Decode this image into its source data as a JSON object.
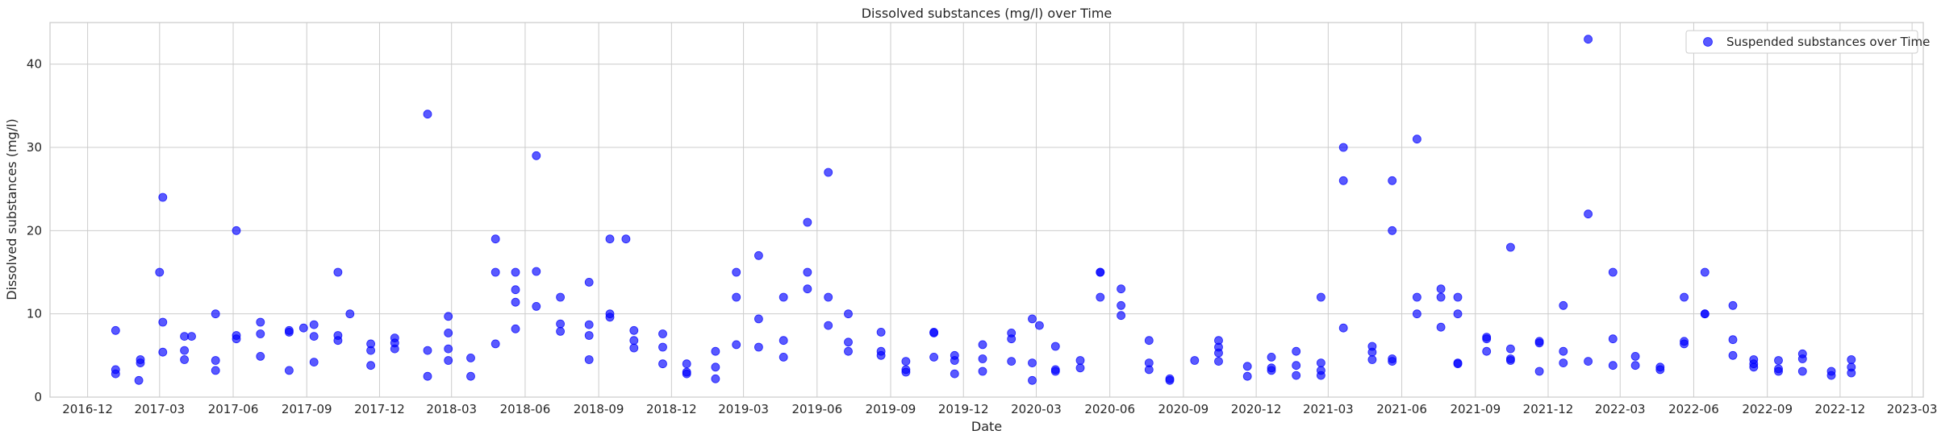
{
  "chart_data": {
    "type": "scatter",
    "title": "Dissolved substances (mg/l) over Time",
    "xlabel": "Date",
    "ylabel": "Dissolved substances (mg/l)",
    "xlim": [
      "2016-10-15",
      "2023-03-15"
    ],
    "ylim": [
      0,
      45
    ],
    "x_ticks": [
      "2016-12",
      "2017-03",
      "2017-06",
      "2017-09",
      "2017-12",
      "2018-03",
      "2018-06",
      "2018-09",
      "2018-12",
      "2019-03",
      "2019-06",
      "2019-09",
      "2019-12",
      "2020-03",
      "2020-06",
      "2020-09",
      "2020-12",
      "2021-03",
      "2021-06",
      "2021-09",
      "2021-12",
      "2022-03",
      "2022-06",
      "2022-09",
      "2022-12",
      "2023-03"
    ],
    "y_ticks": [
      0,
      10,
      20,
      30,
      40
    ],
    "grid": true,
    "legend_position": "top-right",
    "colors": {
      "marker": "#0000ff",
      "marker_alpha": 0.65,
      "grid": "#cccccc"
    },
    "series": [
      {
        "name": "Suspended substances over Time",
        "points": [
          {
            "x": "2017-01-05",
            "y": 8.0
          },
          {
            "x": "2017-01-05",
            "y": 3.3
          },
          {
            "x": "2017-01-05",
            "y": 2.8
          },
          {
            "x": "2017-02-05",
            "y": 4.5
          },
          {
            "x": "2017-02-05",
            "y": 4.1
          },
          {
            "x": "2017-02-03",
            "y": 2.0
          },
          {
            "x": "2017-03-01",
            "y": 15.0
          },
          {
            "x": "2017-03-05",
            "y": 24.0
          },
          {
            "x": "2017-03-05",
            "y": 9.0
          },
          {
            "x": "2017-03-05",
            "y": 5.4
          },
          {
            "x": "2017-04-01",
            "y": 7.3
          },
          {
            "x": "2017-04-01",
            "y": 5.6
          },
          {
            "x": "2017-04-01",
            "y": 4.5
          },
          {
            "x": "2017-04-10",
            "y": 7.3
          },
          {
            "x": "2017-05-10",
            "y": 10.0
          },
          {
            "x": "2017-05-10",
            "y": 4.4
          },
          {
            "x": "2017-05-10",
            "y": 3.2
          },
          {
            "x": "2017-06-05",
            "y": 20.0
          },
          {
            "x": "2017-06-05",
            "y": 7.4
          },
          {
            "x": "2017-06-05",
            "y": 7.0
          },
          {
            "x": "2017-07-05",
            "y": 9.0
          },
          {
            "x": "2017-07-05",
            "y": 7.6
          },
          {
            "x": "2017-07-05",
            "y": 4.9
          },
          {
            "x": "2017-08-10",
            "y": 8.0
          },
          {
            "x": "2017-08-10",
            "y": 7.8
          },
          {
            "x": "2017-08-10",
            "y": 3.2
          },
          {
            "x": "2017-08-28",
            "y": 8.3
          },
          {
            "x": "2017-09-10",
            "y": 8.7
          },
          {
            "x": "2017-09-10",
            "y": 7.3
          },
          {
            "x": "2017-09-10",
            "y": 4.2
          },
          {
            "x": "2017-10-10",
            "y": 15.0
          },
          {
            "x": "2017-10-10",
            "y": 7.4
          },
          {
            "x": "2017-10-10",
            "y": 6.8
          },
          {
            "x": "2017-10-25",
            "y": 10.0
          },
          {
            "x": "2017-11-20",
            "y": 6.4
          },
          {
            "x": "2017-11-20",
            "y": 5.6
          },
          {
            "x": "2017-11-20",
            "y": 3.8
          },
          {
            "x": "2017-12-20",
            "y": 7.1
          },
          {
            "x": "2017-12-20",
            "y": 6.5
          },
          {
            "x": "2017-12-20",
            "y": 5.8
          },
          {
            "x": "2018-01-30",
            "y": 34.0
          },
          {
            "x": "2018-01-30",
            "y": 5.6
          },
          {
            "x": "2018-01-30",
            "y": 2.5
          },
          {
            "x": "2018-02-25",
            "y": 9.7
          },
          {
            "x": "2018-02-25",
            "y": 7.7
          },
          {
            "x": "2018-02-25",
            "y": 5.8
          },
          {
            "x": "2018-02-25",
            "y": 4.4
          },
          {
            "x": "2018-03-25",
            "y": 4.7
          },
          {
            "x": "2018-03-25",
            "y": 2.5
          },
          {
            "x": "2018-04-25",
            "y": 19.0
          },
          {
            "x": "2018-04-25",
            "y": 15.0
          },
          {
            "x": "2018-04-25",
            "y": 6.4
          },
          {
            "x": "2018-05-20",
            "y": 15.0
          },
          {
            "x": "2018-05-20",
            "y": 12.9
          },
          {
            "x": "2018-05-20",
            "y": 11.4
          },
          {
            "x": "2018-05-20",
            "y": 8.2
          },
          {
            "x": "2018-06-15",
            "y": 29.0
          },
          {
            "x": "2018-06-15",
            "y": 15.1
          },
          {
            "x": "2018-06-15",
            "y": 10.9
          },
          {
            "x": "2018-07-15",
            "y": 12.0
          },
          {
            "x": "2018-07-15",
            "y": 8.8
          },
          {
            "x": "2018-07-15",
            "y": 7.9
          },
          {
            "x": "2018-08-20",
            "y": 13.8
          },
          {
            "x": "2018-08-20",
            "y": 8.7
          },
          {
            "x": "2018-08-20",
            "y": 7.4
          },
          {
            "x": "2018-08-20",
            "y": 4.5
          },
          {
            "x": "2018-09-15",
            "y": 19.0
          },
          {
            "x": "2018-09-15",
            "y": 10.0
          },
          {
            "x": "2018-09-15",
            "y": 9.6
          },
          {
            "x": "2018-10-05",
            "y": 19.0
          },
          {
            "x": "2018-10-15",
            "y": 8.0
          },
          {
            "x": "2018-10-15",
            "y": 6.8
          },
          {
            "x": "2018-10-15",
            "y": 5.9
          },
          {
            "x": "2018-11-20",
            "y": 7.6
          },
          {
            "x": "2018-11-20",
            "y": 6.0
          },
          {
            "x": "2018-11-20",
            "y": 4.0
          },
          {
            "x": "2018-12-20",
            "y": 4.0
          },
          {
            "x": "2018-12-20",
            "y": 3.0
          },
          {
            "x": "2018-12-20",
            "y": 2.8
          },
          {
            "x": "2019-01-25",
            "y": 5.5
          },
          {
            "x": "2019-01-25",
            "y": 3.6
          },
          {
            "x": "2019-01-25",
            "y": 2.2
          },
          {
            "x": "2019-02-20",
            "y": 15.0
          },
          {
            "x": "2019-02-20",
            "y": 12.0
          },
          {
            "x": "2019-02-20",
            "y": 6.3
          },
          {
            "x": "2019-03-20",
            "y": 17.0
          },
          {
            "x": "2019-03-20",
            "y": 9.4
          },
          {
            "x": "2019-03-20",
            "y": 6.0
          },
          {
            "x": "2019-04-20",
            "y": 12.0
          },
          {
            "x": "2019-04-20",
            "y": 6.8
          },
          {
            "x": "2019-04-20",
            "y": 4.8
          },
          {
            "x": "2019-05-20",
            "y": 21.0
          },
          {
            "x": "2019-05-20",
            "y": 15.0
          },
          {
            "x": "2019-05-20",
            "y": 13.0
          },
          {
            "x": "2019-06-15",
            "y": 27.0
          },
          {
            "x": "2019-06-15",
            "y": 12.0
          },
          {
            "x": "2019-06-15",
            "y": 8.6
          },
          {
            "x": "2019-07-10",
            "y": 10.0
          },
          {
            "x": "2019-07-10",
            "y": 6.6
          },
          {
            "x": "2019-07-10",
            "y": 5.5
          },
          {
            "x": "2019-08-20",
            "y": 7.8
          },
          {
            "x": "2019-08-20",
            "y": 5.5
          },
          {
            "x": "2019-08-20",
            "y": 5.0
          },
          {
            "x": "2019-09-20",
            "y": 4.3
          },
          {
            "x": "2019-09-20",
            "y": 3.3
          },
          {
            "x": "2019-09-20",
            "y": 3.0
          },
          {
            "x": "2019-10-25",
            "y": 7.8
          },
          {
            "x": "2019-10-25",
            "y": 7.7
          },
          {
            "x": "2019-10-25",
            "y": 4.8
          },
          {
            "x": "2019-11-20",
            "y": 5.0
          },
          {
            "x": "2019-11-20",
            "y": 4.4
          },
          {
            "x": "2019-11-20",
            "y": 2.8
          },
          {
            "x": "2019-12-25",
            "y": 6.3
          },
          {
            "x": "2019-12-25",
            "y": 4.6
          },
          {
            "x": "2019-12-25",
            "y": 3.1
          },
          {
            "x": "2020-01-30",
            "y": 7.7
          },
          {
            "x": "2020-01-30",
            "y": 7.0
          },
          {
            "x": "2020-01-30",
            "y": 4.3
          },
          {
            "x": "2020-02-25",
            "y": 9.4
          },
          {
            "x": "2020-02-25",
            "y": 4.1
          },
          {
            "x": "2020-02-25",
            "y": 2.0
          },
          {
            "x": "2020-03-05",
            "y": 8.6
          },
          {
            "x": "2020-03-25",
            "y": 6.1
          },
          {
            "x": "2020-03-25",
            "y": 3.3
          },
          {
            "x": "2020-03-25",
            "y": 3.1
          },
          {
            "x": "2020-04-25",
            "y": 4.4
          },
          {
            "x": "2020-04-25",
            "y": 3.5
          },
          {
            "x": "2020-05-20",
            "y": 15.0
          },
          {
            "x": "2020-05-20",
            "y": 15.0
          },
          {
            "x": "2020-05-20",
            "y": 12.0
          },
          {
            "x": "2020-06-15",
            "y": 13.0
          },
          {
            "x": "2020-06-15",
            "y": 11.0
          },
          {
            "x": "2020-06-15",
            "y": 9.8
          },
          {
            "x": "2020-07-20",
            "y": 6.8
          },
          {
            "x": "2020-07-20",
            "y": 4.1
          },
          {
            "x": "2020-07-20",
            "y": 3.3
          },
          {
            "x": "2020-08-15",
            "y": 2.2
          },
          {
            "x": "2020-08-15",
            "y": 2.0
          },
          {
            "x": "2020-09-15",
            "y": 4.4
          },
          {
            "x": "2020-10-15",
            "y": 6.8
          },
          {
            "x": "2020-10-15",
            "y": 6.0
          },
          {
            "x": "2020-10-15",
            "y": 5.3
          },
          {
            "x": "2020-10-15",
            "y": 4.3
          },
          {
            "x": "2020-11-20",
            "y": 3.7
          },
          {
            "x": "2020-11-20",
            "y": 2.5
          },
          {
            "x": "2020-12-20",
            "y": 4.8
          },
          {
            "x": "2020-12-20",
            "y": 3.5
          },
          {
            "x": "2020-12-20",
            "y": 3.2
          },
          {
            "x": "2021-01-20",
            "y": 5.5
          },
          {
            "x": "2021-01-20",
            "y": 3.8
          },
          {
            "x": "2021-01-20",
            "y": 2.6
          },
          {
            "x": "2021-02-20",
            "y": 12.0
          },
          {
            "x": "2021-02-20",
            "y": 4.1
          },
          {
            "x": "2021-02-20",
            "y": 3.2
          },
          {
            "x": "2021-02-20",
            "y": 2.6
          },
          {
            "x": "2021-03-20",
            "y": 30.0
          },
          {
            "x": "2021-03-20",
            "y": 26.0
          },
          {
            "x": "2021-03-20",
            "y": 8.3
          },
          {
            "x": "2021-04-25",
            "y": 6.1
          },
          {
            "x": "2021-04-25",
            "y": 5.4
          },
          {
            "x": "2021-04-25",
            "y": 4.5
          },
          {
            "x": "2021-05-20",
            "y": 26.0
          },
          {
            "x": "2021-05-20",
            "y": 20.0
          },
          {
            "x": "2021-05-20",
            "y": 4.6
          },
          {
            "x": "2021-05-20",
            "y": 4.3
          },
          {
            "x": "2021-06-20",
            "y": 31.0
          },
          {
            "x": "2021-06-20",
            "y": 12.0
          },
          {
            "x": "2021-06-20",
            "y": 10.0
          },
          {
            "x": "2021-07-20",
            "y": 13.0
          },
          {
            "x": "2021-07-20",
            "y": 12.0
          },
          {
            "x": "2021-07-20",
            "y": 8.4
          },
          {
            "x": "2021-08-10",
            "y": 12.0
          },
          {
            "x": "2021-08-10",
            "y": 10.0
          },
          {
            "x": "2021-08-10",
            "y": 4.1
          },
          {
            "x": "2021-08-10",
            "y": 4.0
          },
          {
            "x": "2021-09-15",
            "y": 7.2
          },
          {
            "x": "2021-09-15",
            "y": 7.0
          },
          {
            "x": "2021-09-15",
            "y": 5.5
          },
          {
            "x": "2021-10-15",
            "y": 18.0
          },
          {
            "x": "2021-10-15",
            "y": 5.8
          },
          {
            "x": "2021-10-15",
            "y": 4.6
          },
          {
            "x": "2021-10-15",
            "y": 4.4
          },
          {
            "x": "2021-11-20",
            "y": 6.7
          },
          {
            "x": "2021-11-20",
            "y": 6.5
          },
          {
            "x": "2021-11-20",
            "y": 3.1
          },
          {
            "x": "2021-12-20",
            "y": 11.0
          },
          {
            "x": "2021-12-20",
            "y": 5.5
          },
          {
            "x": "2021-12-20",
            "y": 4.1
          },
          {
            "x": "2022-01-20",
            "y": 43.0
          },
          {
            "x": "2022-01-20",
            "y": 22.0
          },
          {
            "x": "2022-01-20",
            "y": 4.3
          },
          {
            "x": "2022-02-20",
            "y": 15.0
          },
          {
            "x": "2022-02-20",
            "y": 7.0
          },
          {
            "x": "2022-02-20",
            "y": 3.8
          },
          {
            "x": "2022-03-20",
            "y": 4.9
          },
          {
            "x": "2022-03-20",
            "y": 3.8
          },
          {
            "x": "2022-04-20",
            "y": 3.6
          },
          {
            "x": "2022-04-20",
            "y": 3.3
          },
          {
            "x": "2022-05-20",
            "y": 12.0
          },
          {
            "x": "2022-05-20",
            "y": 6.7
          },
          {
            "x": "2022-05-20",
            "y": 6.4
          },
          {
            "x": "2022-06-15",
            "y": 15.0
          },
          {
            "x": "2022-06-15",
            "y": 10.0
          },
          {
            "x": "2022-06-15",
            "y": 10.0
          },
          {
            "x": "2022-07-20",
            "y": 11.0
          },
          {
            "x": "2022-07-20",
            "y": 6.9
          },
          {
            "x": "2022-07-20",
            "y": 5.0
          },
          {
            "x": "2022-08-15",
            "y": 4.5
          },
          {
            "x": "2022-08-15",
            "y": 4.0
          },
          {
            "x": "2022-08-15",
            "y": 3.6
          },
          {
            "x": "2022-09-15",
            "y": 4.4
          },
          {
            "x": "2022-09-15",
            "y": 3.4
          },
          {
            "x": "2022-09-15",
            "y": 3.1
          },
          {
            "x": "2022-10-15",
            "y": 5.2
          },
          {
            "x": "2022-10-15",
            "y": 4.6
          },
          {
            "x": "2022-10-15",
            "y": 3.1
          },
          {
            "x": "2022-11-20",
            "y": 3.1
          },
          {
            "x": "2022-11-20",
            "y": 2.6
          },
          {
            "x": "2022-12-15",
            "y": 4.5
          },
          {
            "x": "2022-12-15",
            "y": 3.6
          },
          {
            "x": "2022-12-15",
            "y": 2.9
          }
        ]
      }
    ]
  }
}
